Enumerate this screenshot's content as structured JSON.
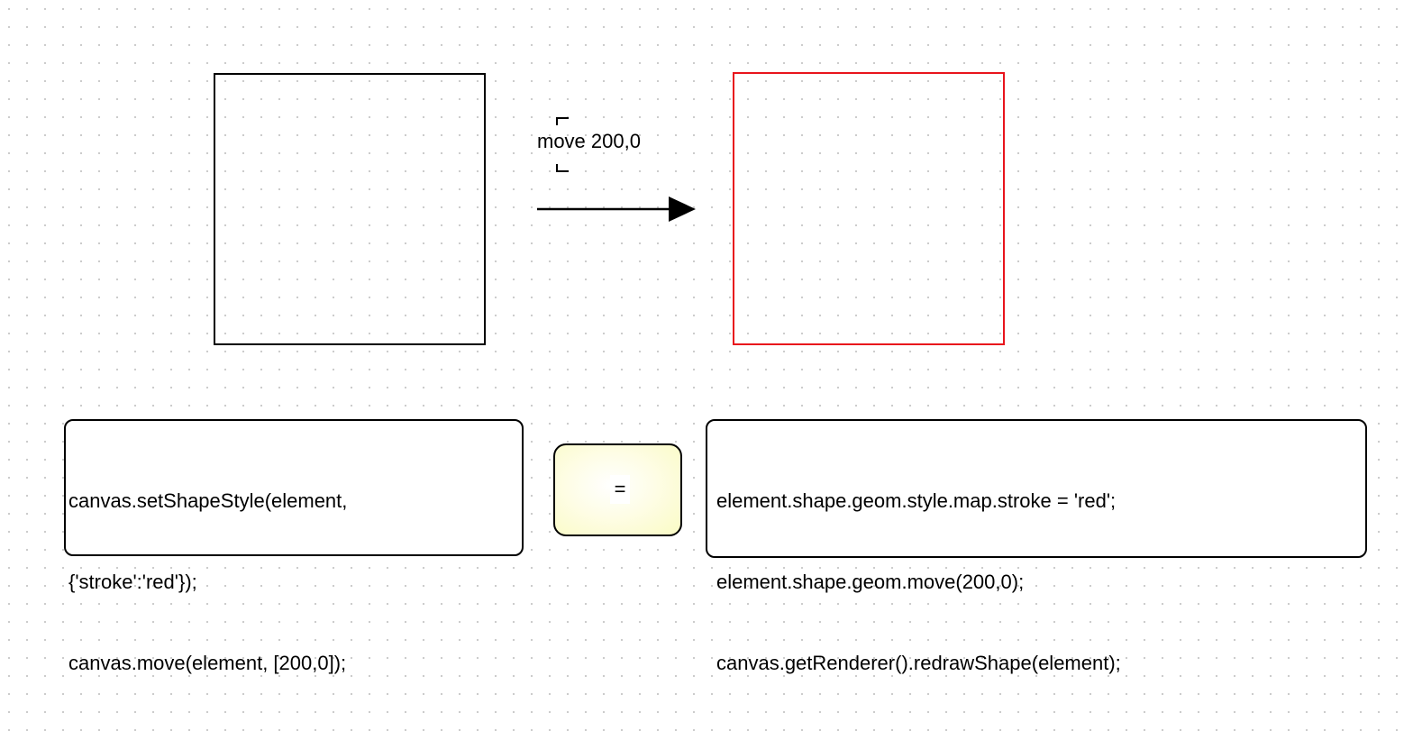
{
  "diagram": {
    "move_label": "move 200,0",
    "colors": {
      "original_stroke": "#000000",
      "moved_stroke": "#e8141c",
      "equals_fill": "#fafbc4",
      "grid_dot": "#c9c9c9"
    },
    "code_left": {
      "lines": [
        "canvas.setShapeStyle(element,",
        "{'stroke':'red'});",
        "canvas.move(element, [200,0]);"
      ]
    },
    "equals_symbol": "=",
    "code_right": {
      "lines": [
        "element.shape.geom.style.map.stroke = 'red';",
        "element.shape.geom.move(200,0);",
        "canvas.getRenderer().redrawShape(element);"
      ]
    }
  }
}
